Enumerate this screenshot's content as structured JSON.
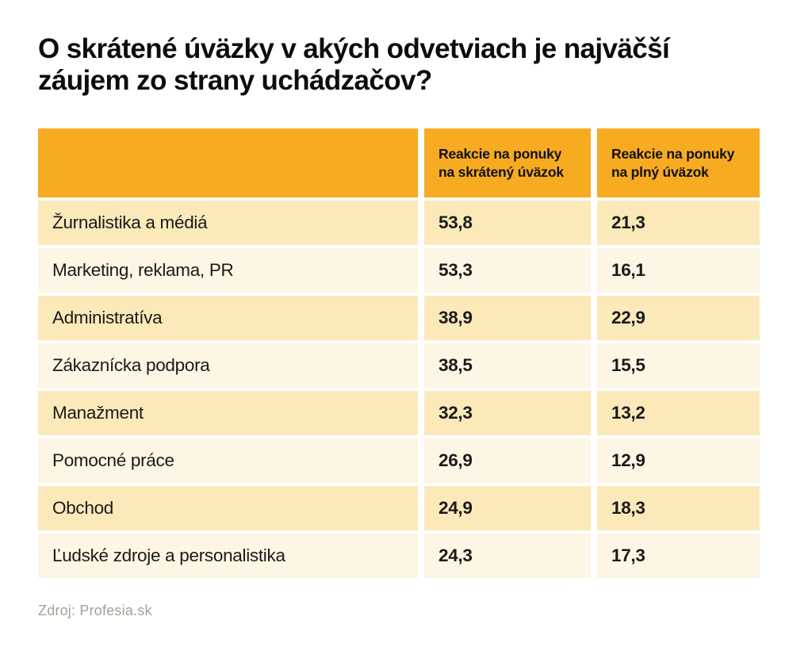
{
  "title": "O skrátené úväzky v akých odvetviach je najväčší záujem zo strany uchádzačov?",
  "table": {
    "columns": [
      "",
      "Reakcie na ponuky na skrátený úväzok",
      "Reakcie na ponuky na plný úväzok"
    ],
    "rows": [
      {
        "category": "Žurnalistika a médiá",
        "part_time": "53,8",
        "full_time": "21,3"
      },
      {
        "category": "Marketing, reklama, PR",
        "part_time": "53,3",
        "full_time": "16,1"
      },
      {
        "category": "Administratíva",
        "part_time": "38,9",
        "full_time": "22,9"
      },
      {
        "category": "Zákaznícka podpora",
        "part_time": "38,5",
        "full_time": "15,5"
      },
      {
        "category": "Manažment",
        "part_time": "32,3",
        "full_time": "13,2"
      },
      {
        "category": "Pomocné práce",
        "part_time": "26,9",
        "full_time": "12,9"
      },
      {
        "category": "Obchod",
        "part_time": "24,9",
        "full_time": "18,3"
      },
      {
        "category": "Ľudské zdroje a personalistika",
        "part_time": "24,3",
        "full_time": "17,3"
      }
    ]
  },
  "source": "Zdroj: Profesia.sk",
  "colors": {
    "header_bg": "#F7AB21",
    "row_dark": "#FBE9BA",
    "row_light": "#FDF6E5",
    "title_color": "#0D0D0D",
    "text_color": "#1A1A1A",
    "source_color": "#A5A096",
    "page_bg": "#FFFFFF"
  },
  "chart_data": {
    "type": "table",
    "title": "O skrátené úväzky v akých odvetviach je najväčší záujem zo strany uchádzačov?",
    "categories": [
      "Žurnalistika a médiá",
      "Marketing, reklama, PR",
      "Administratíva",
      "Zákaznícka podpora",
      "Manažment",
      "Pomocné práce",
      "Obchod",
      "Ľudské zdroje a personalistika"
    ],
    "series": [
      {
        "name": "Reakcie na ponuky na skrátený úväzok",
        "values": [
          53.8,
          53.3,
          38.9,
          38.5,
          32.3,
          26.9,
          24.9,
          24.3
        ]
      },
      {
        "name": "Reakcie na ponuky na plný úväzok",
        "values": [
          21.3,
          16.1,
          22.9,
          15.5,
          13.2,
          12.9,
          18.3,
          17.3
        ]
      }
    ],
    "source": "Zdroj: Profesia.sk",
    "legend_position": "top",
    "grid": false
  }
}
